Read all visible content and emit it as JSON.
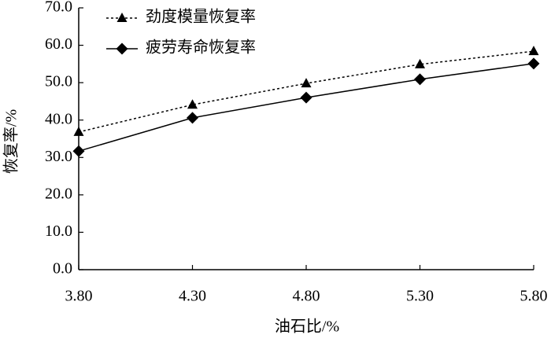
{
  "chart_data": {
    "type": "line",
    "x_label": "油石比/%",
    "y_label": "恢复率/%",
    "x": [
      3.8,
      4.3,
      4.8,
      5.3,
      5.8
    ],
    "xlim": [
      3.8,
      5.8
    ],
    "xticks": [
      {
        "value": 3.8,
        "label": "3.80"
      },
      {
        "value": 4.3,
        "label": "4.30"
      },
      {
        "value": 4.8,
        "label": "4.80"
      },
      {
        "value": 5.3,
        "label": "5.30"
      },
      {
        "value": 5.8,
        "label": "5.80"
      }
    ],
    "ylim": [
      0,
      70
    ],
    "yticks": [
      {
        "value": 0,
        "label": "0.0"
      },
      {
        "value": 10,
        "label": "10.0"
      },
      {
        "value": 20,
        "label": "20.0"
      },
      {
        "value": 30,
        "label": "30.0"
      },
      {
        "value": 40,
        "label": "40.0"
      },
      {
        "value": 50,
        "label": "50.0"
      },
      {
        "value": 60,
        "label": "60.0"
      },
      {
        "value": 70,
        "label": "70.0"
      }
    ],
    "grid": false,
    "legend": "top-left",
    "series": [
      {
        "name": "劲度模量恢复率",
        "color": "#000000",
        "line_style": "dotted",
        "marker": "triangle",
        "values": [
          36.8,
          44.1,
          49.8,
          54.9,
          58.4
        ]
      },
      {
        "name": "疲劳寿命恢复率",
        "color": "#000000",
        "line_style": "solid",
        "marker": "diamond",
        "values": [
          31.7,
          40.6,
          46.0,
          50.9,
          55.1
        ]
      }
    ]
  }
}
